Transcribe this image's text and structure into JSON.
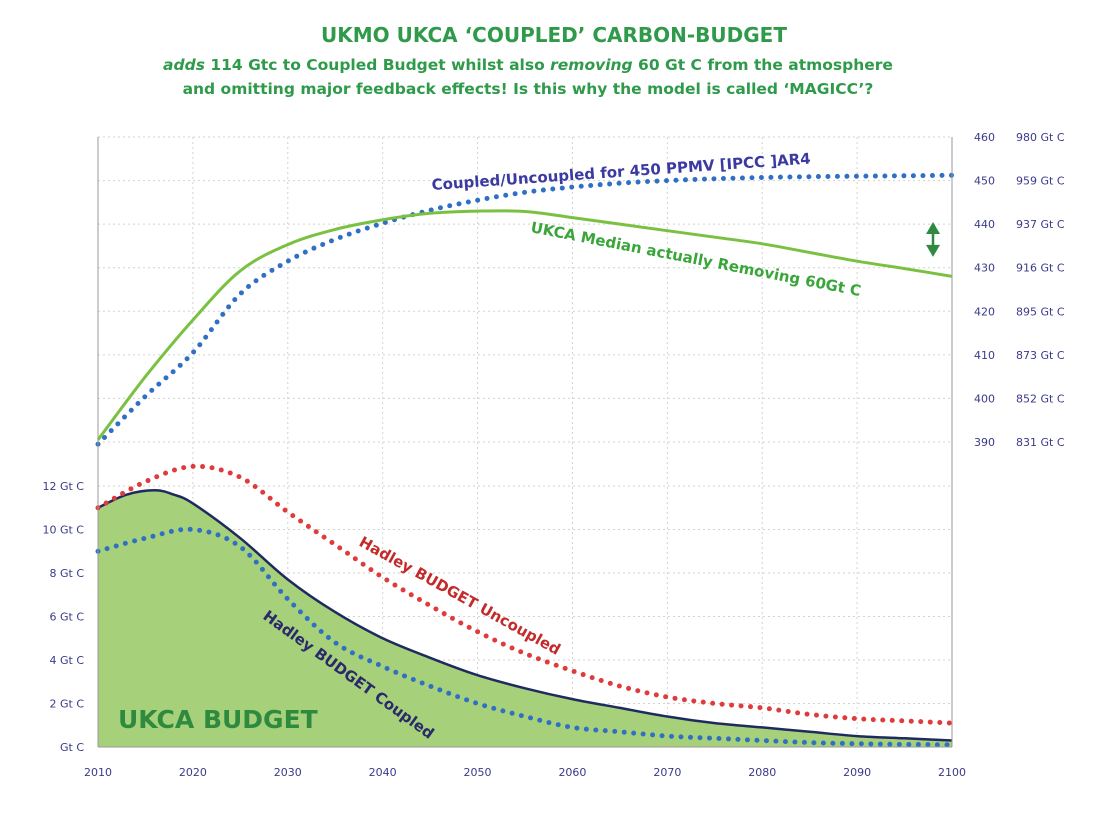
{
  "chart_data": {
    "type": "line",
    "title": "UKMO UKCA ‘COUPLED’ CARBON-BUDGET",
    "subtitle_line1_parts": [
      "adds",
      " 114 Gtc to Coupled Budget whilst also ",
      "removing",
      " 60 Gt C from the atmosphere"
    ],
    "subtitle_line2": "and omitting major feedback effects! Is this why the model is called ‘MAGICC’?",
    "x_ticks": [
      "2010",
      "2020",
      "2030",
      "2040",
      "2050",
      "2060",
      "2070",
      "2080",
      "2090",
      "2100"
    ],
    "xlim": [
      2010,
      2100
    ],
    "left_axis": {
      "ticks": [
        "Gt C",
        "2 Gt C",
        "4 Gt C",
        "6 Gt C",
        "8 Gt C",
        "10 Gt C",
        "12 Gt C"
      ],
      "ylim": [
        0,
        12
      ]
    },
    "right_axis": {
      "ppmv_ticks": [
        "390",
        "400",
        "410",
        "420",
        "430",
        "440",
        "450",
        "460"
      ],
      "gtc_ticks": [
        "831 Gt C",
        "852 Gt C",
        "873 Gt C",
        "895 Gt C",
        "916 Gt C",
        "937 Gt C",
        "959 Gt C",
        "980 Gt C"
      ],
      "ylim": [
        390,
        460
      ]
    },
    "grid": true,
    "series": [
      {
        "name": "Coupled/Uncoupled for 450 PPMV [IPCC ]AR4",
        "axis": "right",
        "style": "dotted",
        "color": "#2f6fc4",
        "x": [
          2010,
          2015,
          2020,
          2025,
          2030,
          2035,
          2040,
          2045,
          2050,
          2055,
          2060,
          2065,
          2070,
          2075,
          2080,
          2085,
          2090,
          2095,
          2100
        ],
        "values": [
          389.5,
          400.5,
          410.5,
          424,
          431.5,
          436.5,
          440.2,
          443.2,
          445.5,
          447.3,
          448.5,
          449.4,
          450,
          450.4,
          450.7,
          450.9,
          451,
          451.1,
          451.2
        ]
      },
      {
        "name": "UKCA Median actually Removing 60Gt C",
        "axis": "right",
        "style": "solid",
        "color": "#7ac142",
        "x": [
          2010,
          2015,
          2020,
          2025,
          2030,
          2035,
          2040,
          2045,
          2050,
          2055,
          2060,
          2065,
          2070,
          2075,
          2080,
          2085,
          2090,
          2095,
          2100
        ],
        "values": [
          390.5,
          405,
          418,
          429.3,
          435.3,
          438.8,
          441,
          442.5,
          443,
          442.9,
          441.5,
          440,
          438.5,
          437,
          435.5,
          433.5,
          431.5,
          429.8,
          428
        ]
      },
      {
        "name": "Hadley BUDGET Uncoupled",
        "axis": "left",
        "style": "dotted",
        "color": "#e03a3a",
        "x": [
          2010,
          2015,
          2020,
          2025,
          2030,
          2035,
          2040,
          2045,
          2050,
          2055,
          2060,
          2065,
          2070,
          2075,
          2080,
          2085,
          2090,
          2095,
          2100
        ],
        "values": [
          11,
          12.2,
          12.9,
          12.4,
          10.8,
          9.3,
          7.8,
          6.5,
          5.3,
          4.3,
          3.5,
          2.8,
          2.3,
          2,
          1.8,
          1.5,
          1.3,
          1.2,
          1.1
        ]
      },
      {
        "name": "Hadley BUDGET Coupled",
        "axis": "left",
        "style": "dotted",
        "color": "#2f6fc4",
        "x": [
          2010,
          2015,
          2020,
          2025,
          2030,
          2035,
          2040,
          2045,
          2050,
          2055,
          2060,
          2065,
          2070,
          2075,
          2080,
          2085,
          2090,
          2095,
          2100
        ],
        "values": [
          9,
          9.6,
          10,
          9.2,
          6.8,
          4.8,
          3.7,
          2.8,
          2,
          1.4,
          0.9,
          0.7,
          0.5,
          0.4,
          0.3,
          0.2,
          0.15,
          0.12,
          0.1
        ]
      },
      {
        "name": "UKCA BUDGET",
        "axis": "left",
        "style": "area",
        "color": "#a6d17a",
        "edge_color": "#1f2a5e",
        "x": [
          2010,
          2013,
          2016,
          2018,
          2020,
          2025,
          2030,
          2035,
          2040,
          2045,
          2050,
          2055,
          2060,
          2065,
          2070,
          2075,
          2080,
          2085,
          2090,
          2095,
          2100
        ],
        "values": [
          11,
          11.6,
          11.8,
          11.6,
          11.2,
          9.6,
          7.7,
          6.2,
          5,
          4.1,
          3.3,
          2.7,
          2.2,
          1.8,
          1.4,
          1.1,
          0.9,
          0.7,
          0.5,
          0.4,
          0.3
        ]
      }
    ],
    "annotations": {
      "coupled_uncoupled": "Coupled/Uncoupled for 450 PPMV [IPCC ]AR4",
      "ukca_median": "UKCA Median actually Removing 60Gt C",
      "hadley_uncoupled": "Hadley BUDGET Uncoupled",
      "hadley_coupled": "Hadley BUDGET Coupled",
      "ukca_budget": "UKCA BUDGET"
    },
    "arrow": {
      "x": 2098,
      "from": 440.5,
      "to": 432.5,
      "color": "#2e8a3e"
    }
  }
}
